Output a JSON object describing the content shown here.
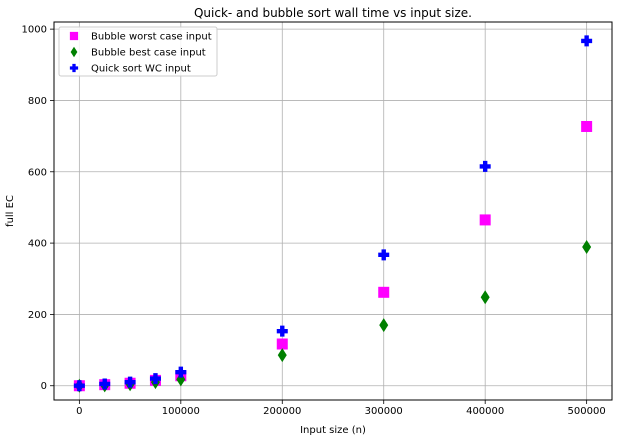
{
  "chart_data": {
    "type": "scatter",
    "title": "Quick- and bubble sort  wall time vs input size.",
    "xlabel": "Input size (n)",
    "ylabel": "full EC",
    "xlim": [
      -25000,
      525000
    ],
    "ylim": [
      -40,
      1020
    ],
    "xticks": [
      0,
      100000,
      200000,
      300000,
      400000,
      500000
    ],
    "xtick_labels": [
      "0",
      "100000",
      "200000",
      "300000",
      "400000",
      "500000"
    ],
    "yticks": [
      0,
      200,
      400,
      600,
      800,
      1000
    ],
    "ytick_labels": [
      "0",
      "200",
      "400",
      "600",
      "800",
      "1000"
    ],
    "grid": true,
    "legend_position": "upper-left",
    "x": [
      0,
      25000,
      50000,
      75000,
      100000,
      200000,
      300000,
      400000,
      500000
    ],
    "series": [
      {
        "name": "Bubble worst case input",
        "marker": "square",
        "color": "#ff00ff",
        "y": [
          0,
          3,
          7,
          15,
          28,
          117,
          262,
          465,
          727
        ]
      },
      {
        "name": "Bubble best case input",
        "marker": "diamond",
        "color": "#008000",
        "y": [
          0,
          1,
          4,
          10,
          18,
          86,
          170,
          248,
          389
        ]
      },
      {
        "name": "Quick sort WC input",
        "marker": "plus",
        "color": "#0000ff",
        "y": [
          0,
          5,
          10,
          20,
          38,
          153,
          367,
          615,
          967
        ]
      }
    ]
  }
}
